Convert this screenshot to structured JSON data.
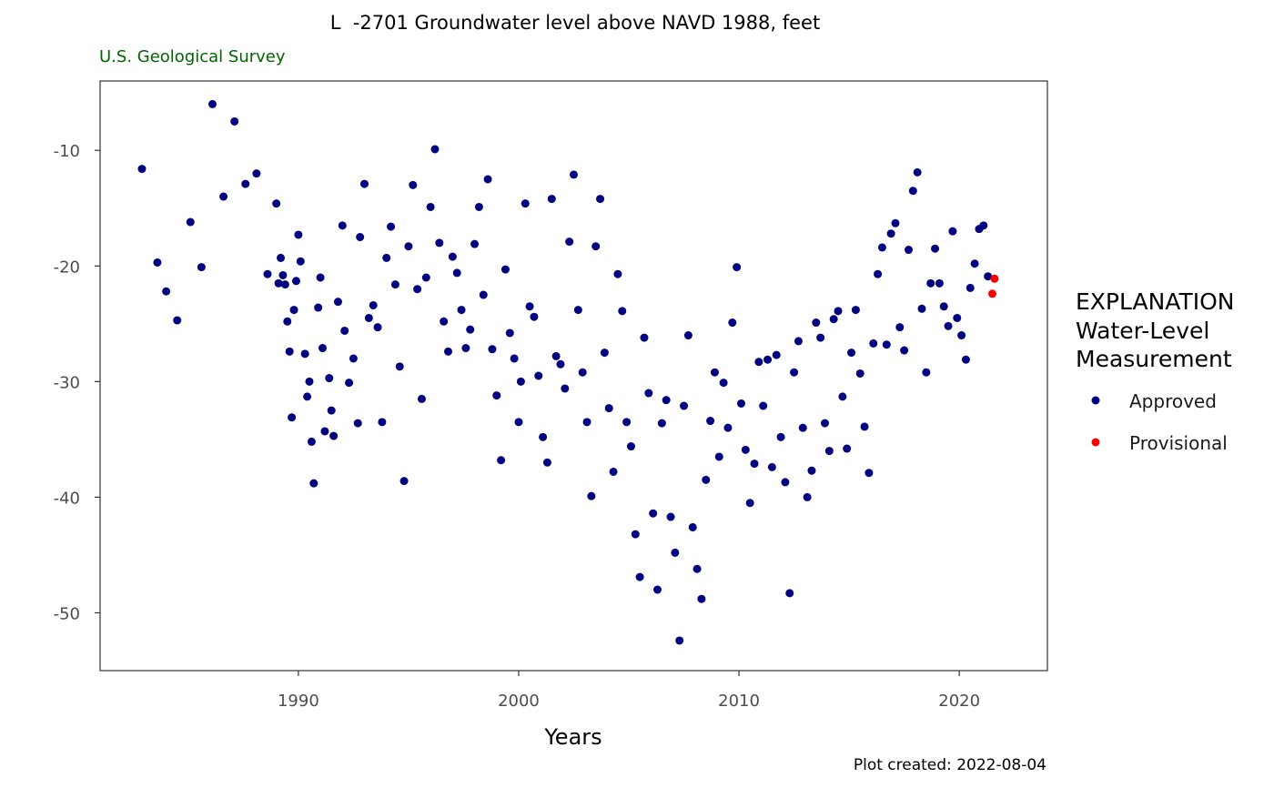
{
  "chart_data": {
    "type": "scatter",
    "title": "L  -2701 Groundwater level above NAVD 1988, feet",
    "subtitle": "U.S. Geological Survey",
    "xlabel": "Years",
    "ylabel": "",
    "caption": "Plot created: 2022-08-04",
    "xlim": [
      1981,
      2024
    ],
    "ylim": [
      -55,
      -4
    ],
    "xticks": [
      1990,
      2000,
      2010,
      2020
    ],
    "xtick_labels": [
      "1990",
      "2000",
      "2010",
      "2020"
    ],
    "yticks": [
      -10,
      -20,
      -30,
      -40,
      -50
    ],
    "ytick_labels": [
      "-10",
      "-20",
      "-30",
      "-40",
      "-50"
    ],
    "grid": false,
    "legend": {
      "position": "right",
      "title_lines": [
        "EXPLANATION",
        "Water-Level",
        "Measurement"
      ],
      "entries": [
        {
          "label": "Approved",
          "color": "#000080"
        },
        {
          "label": "Provisional",
          "color": "#ff0000"
        }
      ]
    },
    "subtitle_color": "#006400",
    "series": [
      {
        "name": "Approved",
        "color": "#000080",
        "points": [
          [
            1982.9,
            -11.6
          ],
          [
            1983.6,
            -19.7
          ],
          [
            1984.0,
            -22.2
          ],
          [
            1984.5,
            -24.7
          ],
          [
            1985.1,
            -16.2
          ],
          [
            1985.6,
            -20.1
          ],
          [
            1986.1,
            -6.0
          ],
          [
            1986.6,
            -14.0
          ],
          [
            1987.1,
            -7.5
          ],
          [
            1987.6,
            -12.9
          ],
          [
            1988.1,
            -12.0
          ],
          [
            1988.6,
            -20.7
          ],
          [
            1989.0,
            -14.6
          ],
          [
            1989.1,
            -21.5
          ],
          [
            1989.2,
            -19.3
          ],
          [
            1989.3,
            -20.8
          ],
          [
            1989.4,
            -21.6
          ],
          [
            1989.5,
            -24.8
          ],
          [
            1989.6,
            -27.4
          ],
          [
            1989.7,
            -33.1
          ],
          [
            1989.8,
            -23.8
          ],
          [
            1989.9,
            -21.3
          ],
          [
            1990.0,
            -17.3
          ],
          [
            1990.1,
            -19.6
          ],
          [
            1990.3,
            -27.6
          ],
          [
            1990.4,
            -31.3
          ],
          [
            1990.5,
            -30.0
          ],
          [
            1990.6,
            -35.2
          ],
          [
            1990.7,
            -38.8
          ],
          [
            1990.9,
            -23.6
          ],
          [
            1991.0,
            -21.0
          ],
          [
            1991.1,
            -27.1
          ],
          [
            1991.2,
            -34.3
          ],
          [
            1991.4,
            -29.7
          ],
          [
            1991.5,
            -32.5
          ],
          [
            1991.6,
            -34.7
          ],
          [
            1991.8,
            -23.1
          ],
          [
            1992.0,
            -16.5
          ],
          [
            1992.1,
            -25.6
          ],
          [
            1992.3,
            -30.1
          ],
          [
            1992.5,
            -28.0
          ],
          [
            1992.7,
            -33.6
          ],
          [
            1992.8,
            -17.5
          ],
          [
            1993.0,
            -12.9
          ],
          [
            1993.2,
            -24.5
          ],
          [
            1993.4,
            -23.4
          ],
          [
            1993.6,
            -25.3
          ],
          [
            1993.8,
            -33.5
          ],
          [
            1994.0,
            -19.3
          ],
          [
            1994.2,
            -16.6
          ],
          [
            1994.4,
            -21.6
          ],
          [
            1994.6,
            -28.7
          ],
          [
            1994.8,
            -38.6
          ],
          [
            1995.0,
            -18.3
          ],
          [
            1995.2,
            -13.0
          ],
          [
            1995.4,
            -22.0
          ],
          [
            1995.6,
            -31.5
          ],
          [
            1995.8,
            -21.0
          ],
          [
            1996.0,
            -14.9
          ],
          [
            1996.2,
            -9.9
          ],
          [
            1996.4,
            -18.0
          ],
          [
            1996.6,
            -24.8
          ],
          [
            1996.8,
            -27.4
          ],
          [
            1997.0,
            -19.2
          ],
          [
            1997.2,
            -20.6
          ],
          [
            1997.4,
            -23.8
          ],
          [
            1997.6,
            -27.1
          ],
          [
            1997.8,
            -25.5
          ],
          [
            1998.0,
            -18.1
          ],
          [
            1998.2,
            -14.9
          ],
          [
            1998.4,
            -22.5
          ],
          [
            1998.6,
            -12.5
          ],
          [
            1998.8,
            -27.2
          ],
          [
            1999.0,
            -31.2
          ],
          [
            1999.2,
            -36.8
          ],
          [
            1999.4,
            -20.3
          ],
          [
            1999.6,
            -25.8
          ],
          [
            1999.8,
            -28.0
          ],
          [
            2000.0,
            -33.5
          ],
          [
            2000.1,
            -30.0
          ],
          [
            2000.3,
            -14.6
          ],
          [
            2000.5,
            -23.5
          ],
          [
            2000.7,
            -24.4
          ],
          [
            2000.9,
            -29.5
          ],
          [
            2001.1,
            -34.8
          ],
          [
            2001.3,
            -37.0
          ],
          [
            2001.5,
            -14.2
          ],
          [
            2001.7,
            -27.8
          ],
          [
            2001.9,
            -28.5
          ],
          [
            2002.1,
            -30.6
          ],
          [
            2002.3,
            -17.9
          ],
          [
            2002.5,
            -12.1
          ],
          [
            2002.7,
            -23.8
          ],
          [
            2002.9,
            -29.2
          ],
          [
            2003.1,
            -33.5
          ],
          [
            2003.3,
            -39.9
          ],
          [
            2003.5,
            -18.3
          ],
          [
            2003.7,
            -14.2
          ],
          [
            2003.9,
            -27.5
          ],
          [
            2004.1,
            -32.3
          ],
          [
            2004.3,
            -37.8
          ],
          [
            2004.5,
            -20.7
          ],
          [
            2004.7,
            -23.9
          ],
          [
            2004.9,
            -33.5
          ],
          [
            2005.1,
            -35.6
          ],
          [
            2005.3,
            -43.2
          ],
          [
            2005.5,
            -46.9
          ],
          [
            2005.7,
            -26.2
          ],
          [
            2005.9,
            -31.0
          ],
          [
            2006.1,
            -41.4
          ],
          [
            2006.3,
            -48.0
          ],
          [
            2006.5,
            -33.6
          ],
          [
            2006.7,
            -31.6
          ],
          [
            2006.9,
            -41.7
          ],
          [
            2007.1,
            -44.8
          ],
          [
            2007.3,
            -52.4
          ],
          [
            2007.5,
            -32.1
          ],
          [
            2007.7,
            -26.0
          ],
          [
            2007.9,
            -42.6
          ],
          [
            2008.1,
            -46.2
          ],
          [
            2008.3,
            -48.8
          ],
          [
            2008.5,
            -38.5
          ],
          [
            2008.7,
            -33.4
          ],
          [
            2008.9,
            -29.2
          ],
          [
            2009.1,
            -36.5
          ],
          [
            2009.3,
            -30.1
          ],
          [
            2009.5,
            -34.0
          ],
          [
            2009.7,
            -24.9
          ],
          [
            2009.9,
            -20.1
          ],
          [
            2010.1,
            -31.9
          ],
          [
            2010.3,
            -35.9
          ],
          [
            2010.5,
            -40.5
          ],
          [
            2010.7,
            -37.1
          ],
          [
            2010.9,
            -28.3
          ],
          [
            2011.1,
            -32.1
          ],
          [
            2011.3,
            -28.1
          ],
          [
            2011.5,
            -37.4
          ],
          [
            2011.7,
            -27.7
          ],
          [
            2011.9,
            -34.8
          ],
          [
            2012.1,
            -38.7
          ],
          [
            2012.3,
            -48.3
          ],
          [
            2012.5,
            -29.2
          ],
          [
            2012.7,
            -26.5
          ],
          [
            2012.9,
            -34.0
          ],
          [
            2013.1,
            -40.0
          ],
          [
            2013.3,
            -37.7
          ],
          [
            2013.5,
            -24.9
          ],
          [
            2013.7,
            -26.2
          ],
          [
            2013.9,
            -33.6
          ],
          [
            2014.1,
            -36.0
          ],
          [
            2014.3,
            -24.6
          ],
          [
            2014.5,
            -23.9
          ],
          [
            2014.7,
            -31.3
          ],
          [
            2014.9,
            -35.8
          ],
          [
            2015.1,
            -27.5
          ],
          [
            2015.3,
            -23.8
          ],
          [
            2015.5,
            -29.3
          ],
          [
            2015.7,
            -33.9
          ],
          [
            2015.9,
            -37.9
          ],
          [
            2016.1,
            -26.7
          ],
          [
            2016.3,
            -20.7
          ],
          [
            2016.5,
            -18.4
          ],
          [
            2016.7,
            -26.8
          ],
          [
            2016.9,
            -17.2
          ],
          [
            2017.1,
            -16.3
          ],
          [
            2017.3,
            -25.3
          ],
          [
            2017.5,
            -27.3
          ],
          [
            2017.7,
            -18.6
          ],
          [
            2017.9,
            -13.5
          ],
          [
            2018.1,
            -11.9
          ],
          [
            2018.3,
            -23.7
          ],
          [
            2018.5,
            -29.2
          ],
          [
            2018.7,
            -21.5
          ],
          [
            2018.9,
            -18.5
          ],
          [
            2019.1,
            -21.5
          ],
          [
            2019.3,
            -23.5
          ],
          [
            2019.5,
            -25.2
          ],
          [
            2019.7,
            -17.0
          ],
          [
            2019.9,
            -24.5
          ],
          [
            2020.1,
            -26.0
          ],
          [
            2020.3,
            -28.1
          ],
          [
            2020.5,
            -21.9
          ],
          [
            2020.7,
            -19.8
          ],
          [
            2020.9,
            -16.8
          ],
          [
            2021.1,
            -16.5
          ],
          [
            2021.3,
            -20.9
          ]
        ]
      },
      {
        "name": "Provisional",
        "color": "#ff0000",
        "points": [
          [
            2021.5,
            -22.4
          ],
          [
            2021.6,
            -21.1
          ]
        ]
      }
    ]
  }
}
